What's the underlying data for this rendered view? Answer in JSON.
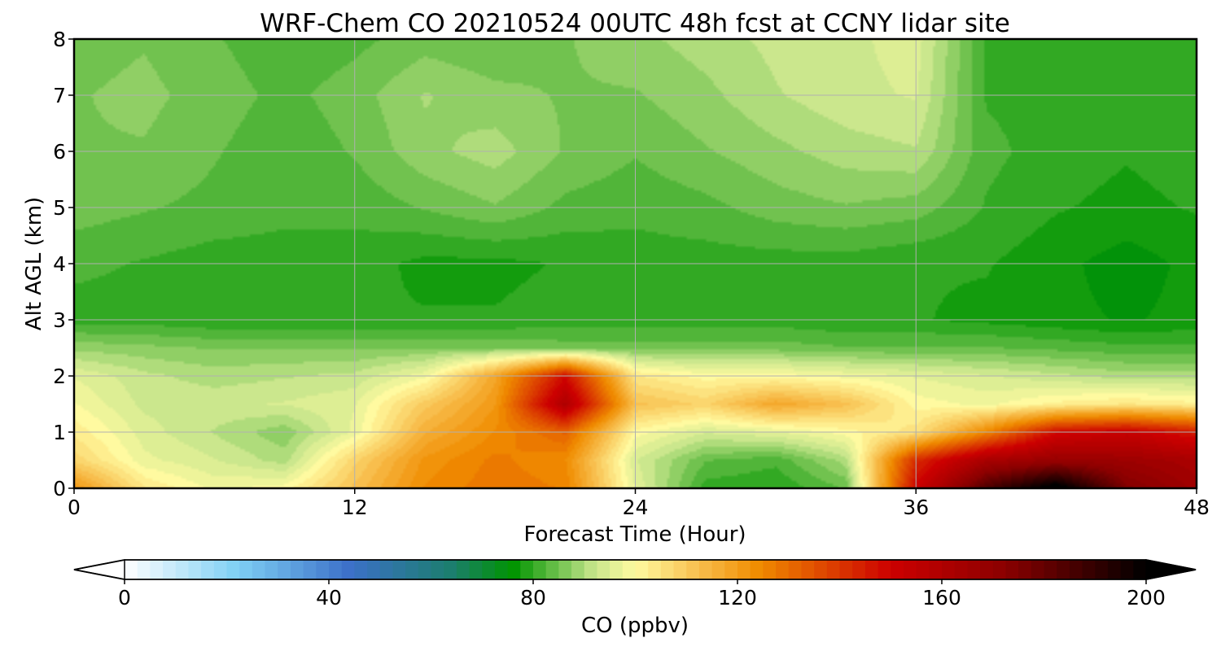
{
  "chart_data": {
    "type": "heatmap",
    "title": "WRF-Chem CO  20210524 00UTC 48h fcst at CCNY lidar site",
    "xlabel": "Forecast Time (Hour)",
    "ylabel": "Alt AGL (km)",
    "xlim": [
      0,
      48
    ],
    "ylim": [
      0,
      8
    ],
    "xticks": [
      0,
      12,
      24,
      36,
      48
    ],
    "yticks": [
      0,
      1,
      2,
      3,
      4,
      5,
      6,
      7,
      8
    ],
    "grid": true,
    "x_hours": [
      0,
      3,
      6,
      9,
      12,
      15,
      18,
      21,
      24,
      27,
      30,
      33,
      36,
      39,
      42,
      45,
      48
    ],
    "y_km": [
      0,
      0.5,
      1,
      1.5,
      2,
      2.5,
      3,
      4,
      5,
      6,
      7,
      8
    ],
    "z_ppbv": [
      [
        122,
        104,
        98,
        100,
        112,
        124,
        128,
        126,
        96,
        80,
        79,
        84,
        150,
        185,
        205,
        175,
        165
      ],
      [
        108,
        97,
        94,
        90,
        108,
        122,
        127,
        124,
        94,
        84,
        82,
        90,
        142,
        162,
        168,
        166,
        162
      ],
      [
        103,
        95,
        91,
        87,
        97,
        116,
        124,
        132,
        100,
        94,
        96,
        100,
        105,
        125,
        148,
        152,
        145
      ],
      [
        99,
        93,
        93,
        94,
        96,
        110,
        121,
        160,
        112,
        108,
        118,
        112,
        100,
        98,
        102,
        104,
        102
      ],
      [
        96,
        92,
        90,
        91,
        92,
        98,
        118,
        148,
        104,
        100,
        100,
        98,
        96,
        94,
        92,
        90,
        90
      ],
      [
        88,
        87,
        86,
        86,
        86,
        86,
        86,
        85,
        85,
        85,
        85,
        84,
        84,
        84,
        83,
        82,
        82
      ],
      [
        80,
        80,
        79,
        79,
        79,
        79,
        79,
        80,
        80,
        80,
        80,
        79,
        79,
        78,
        77,
        76,
        77
      ],
      [
        82,
        81,
        80,
        80,
        80,
        78,
        78,
        79,
        80,
        80,
        80,
        80,
        79,
        79,
        77,
        75,
        77
      ],
      [
        85,
        84,
        83,
        82,
        82,
        84,
        86,
        83,
        82,
        83,
        85,
        86,
        85,
        81,
        79,
        78,
        79
      ],
      [
        86,
        86,
        84,
        82,
        84,
        88,
        90,
        86,
        84,
        86,
        88,
        90,
        91,
        82,
        80,
        79,
        80
      ],
      [
        86,
        87,
        85,
        83,
        85,
        89,
        87,
        86,
        86,
        88,
        91,
        93,
        94,
        81,
        80,
        79,
        80
      ],
      [
        85,
        86,
        84,
        82,
        83,
        85,
        84,
        86,
        88,
        90,
        92,
        93,
        95,
        81,
        80,
        79,
        80
      ]
    ],
    "colorbar": {
      "label": "CO  (ppbv)",
      "min": 0,
      "max": 200,
      "ticks": [
        0,
        40,
        80,
        120,
        160,
        200
      ],
      "extend": "both",
      "colors": [
        {
          "v": 0,
          "c": "#ffffff"
        },
        {
          "v": 22,
          "c": "#7fd0f4"
        },
        {
          "v": 44,
          "c": "#3c70c8"
        },
        {
          "v": 64,
          "c": "#1c7e6e"
        },
        {
          "v": 76,
          "c": "#009400"
        },
        {
          "v": 92,
          "c": "#c8e68c"
        },
        {
          "v": 100,
          "c": "#fffaa0"
        },
        {
          "v": 112,
          "c": "#f8c050"
        },
        {
          "v": 124,
          "c": "#f08c00"
        },
        {
          "v": 150,
          "c": "#cc0000"
        },
        {
          "v": 172,
          "c": "#8c0000"
        },
        {
          "v": 200,
          "c": "#000000"
        }
      ],
      "over_color": "#000000",
      "under_color": "#ffffff"
    }
  }
}
